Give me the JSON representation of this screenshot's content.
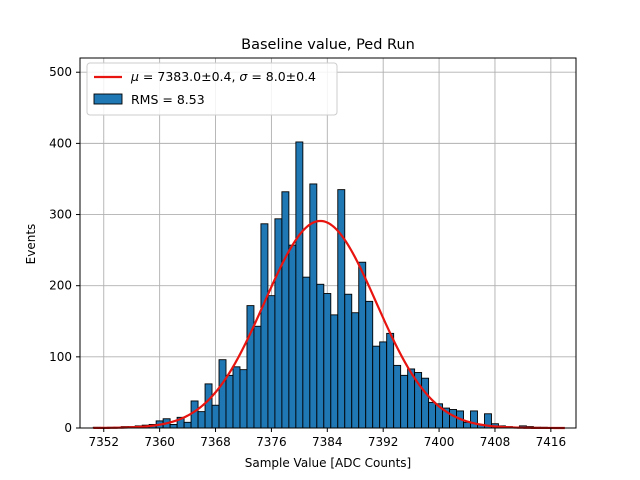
{
  "chart_data": {
    "type": "bar",
    "title": "Baseline value, Ped Run",
    "xlabel": "Sample Value [ADC Counts]",
    "ylabel": "Events",
    "xlim": [
      7348.6,
      7419.6
    ],
    "ylim": [
      0,
      520
    ],
    "xticks": [
      7352,
      7360,
      7368,
      7376,
      7384,
      7392,
      7400,
      7408,
      7416
    ],
    "yticks": [
      0,
      100,
      200,
      300,
      400,
      500
    ],
    "grid": true,
    "legend_position": "top-left",
    "bin_width": 1,
    "series": [
      {
        "name": "RMS = 8.53",
        "kind": "histogram",
        "color": "#1f77b4",
        "x": [
          7351,
          7352,
          7353,
          7354,
          7355,
          7356,
          7357,
          7358,
          7359,
          7360,
          7361,
          7362,
          7363,
          7364,
          7365,
          7366,
          7367,
          7368,
          7369,
          7370,
          7371,
          7372,
          7373,
          7374,
          7375,
          7376,
          7377,
          7378,
          7379,
          7380,
          7381,
          7382,
          7383,
          7384,
          7385,
          7386,
          7387,
          7388,
          7389,
          7390,
          7391,
          7392,
          7393,
          7394,
          7395,
          7396,
          7397,
          7398,
          7399,
          7400,
          7401,
          7402,
          7403,
          7404,
          7405,
          7406,
          7407,
          7408,
          7409,
          7410,
          7411,
          7412,
          7413,
          7414,
          7415
        ],
        "values": [
          1,
          0,
          1,
          1,
          2,
          2,
          3,
          4,
          5,
          10,
          13,
          5,
          15,
          8,
          38,
          23,
          62,
          32,
          96,
          74,
          86,
          82,
          172,
          143,
          287,
          186,
          294,
          332,
          257,
          402,
          212,
          343,
          202,
          189,
          159,
          335,
          188,
          162,
          233,
          178,
          115,
          121,
          133,
          88,
          74,
          83,
          78,
          70,
          36,
          34,
          28,
          26,
          24,
          8,
          24,
          5,
          20,
          6,
          3,
          2,
          1,
          3,
          2,
          1,
          1
        ]
      },
      {
        "name": "$\\mu=$7383.0±0.4, $\\sigma=$8.0±0.4",
        "label_parts": [
          "μ",
          " = 7383.0±0.4, ",
          "σ",
          " = 8.0±0.4"
        ],
        "kind": "gaussian-fit",
        "color": "#e8140f",
        "mu": 7383.0,
        "sigma": 8.0,
        "amplitude": 291,
        "range": [
          7350.5,
          7418
        ]
      }
    ]
  }
}
